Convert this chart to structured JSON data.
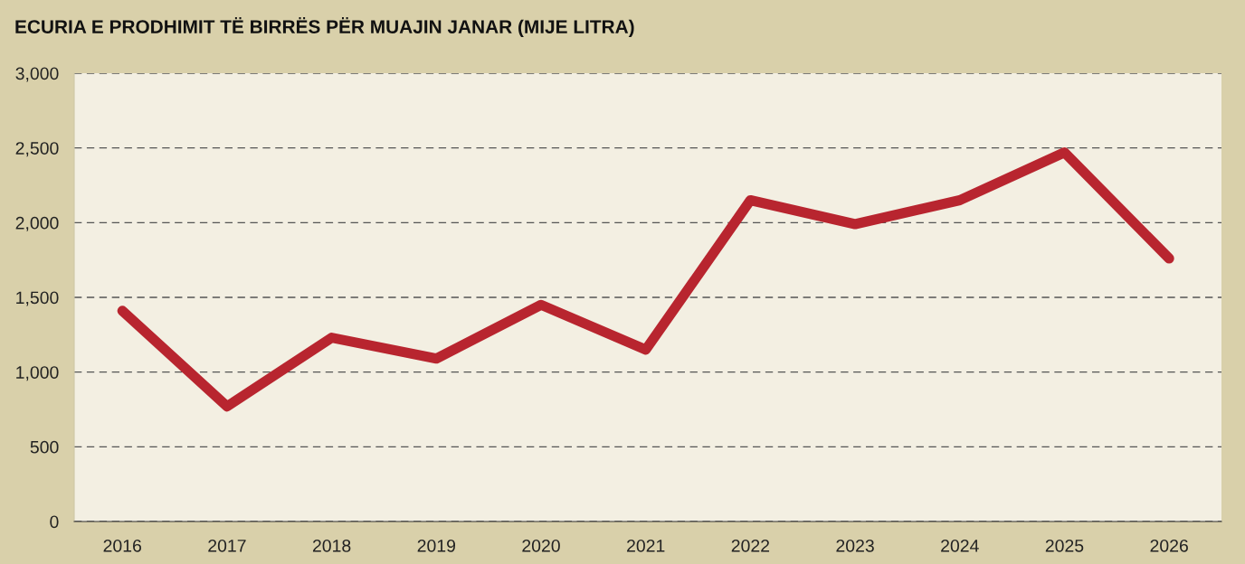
{
  "chart_data": {
    "type": "line",
    "title": "ECURIA E PRODHIMIT TË BIRRËS PËR MUAJIN JANAR (MIJE LITRA)",
    "categories": [
      "2016",
      "2017",
      "2018",
      "2019",
      "2020",
      "2021",
      "2022",
      "2023",
      "2024",
      "2025",
      "2026"
    ],
    "series": [
      {
        "color": "#b8252f",
        "values": [
          1410,
          770,
          1230,
          1090,
          1450,
          1150,
          2150,
          1990,
          2150,
          2470,
          1760
        ]
      }
    ],
    "ylim": [
      0,
      3000
    ],
    "yticks": [
      0,
      500,
      {
        "value": 1000,
        "label": "1,000"
      },
      {
        "value": 1500,
        "label": "1,500"
      },
      {
        "value": 2000,
        "label": "2,000"
      },
      {
        "value": 2500,
        "label": "2,500"
      },
      {
        "value": 3000,
        "label": "3,000"
      }
    ],
    "grid": "y",
    "marker": "none",
    "line_style": "solid"
  }
}
